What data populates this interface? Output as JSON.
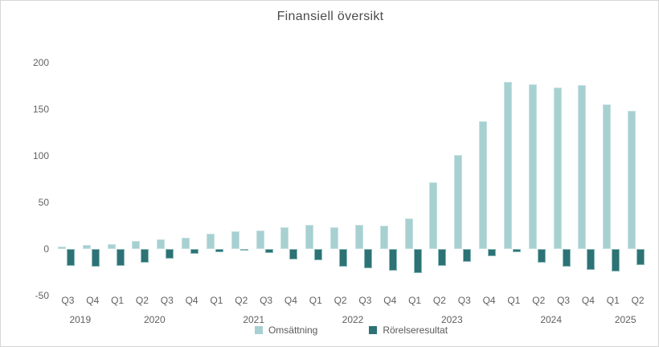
{
  "page": {
    "background": "#ffffff",
    "frame_border_color": "#d6d6d6"
  },
  "chart_data": {
    "type": "bar",
    "title": "Finansiell översikt",
    "categories": [
      "Q3",
      "Q4",
      "Q1",
      "Q2",
      "Q3",
      "Q4",
      "Q1",
      "Q2",
      "Q3",
      "Q4",
      "Q1",
      "Q2",
      "Q3",
      "Q4",
      "Q1",
      "Q2",
      "Q3",
      "Q4",
      "Q1",
      "Q2",
      "Q3",
      "Q4",
      "Q1",
      "Q2"
    ],
    "year_groups": [
      {
        "label": "2019",
        "span": [
          0,
          1
        ]
      },
      {
        "label": "2020",
        "span": [
          2,
          5
        ]
      },
      {
        "label": "2021",
        "span": [
          6,
          9
        ]
      },
      {
        "label": "2022",
        "span": [
          10,
          13
        ]
      },
      {
        "label": "2023",
        "span": [
          14,
          17
        ]
      },
      {
        "label": "2024",
        "span": [
          18,
          21
        ]
      },
      {
        "label": "2025",
        "span": [
          22,
          23
        ]
      }
    ],
    "series": [
      {
        "name": "Omsättning",
        "color": "#a7d0d1",
        "values": [
          3,
          4,
          5,
          9,
          10,
          12,
          16,
          19,
          20,
          23,
          26,
          23,
          26,
          25,
          33,
          72,
          101,
          137,
          179,
          177,
          173,
          176,
          155,
          148
        ]
      },
      {
        "name": "Rörelseresultat",
        "color": "#2d7274",
        "values": [
          -18,
          -19,
          -18,
          -15,
          -10,
          -5,
          -3,
          -2,
          -4,
          -11,
          -12,
          -19,
          -21,
          -23,
          -26,
          -18,
          -14,
          -8,
          -3,
          -15,
          -19,
          -22,
          -24,
          -17
        ]
      }
    ],
    "ylim": [
      -50,
      200
    ],
    "yticks": [
      200,
      150,
      100,
      50,
      0,
      -50
    ],
    "grid": false,
    "xlabel": "",
    "ylabel": "",
    "legend_position": "bottom"
  }
}
